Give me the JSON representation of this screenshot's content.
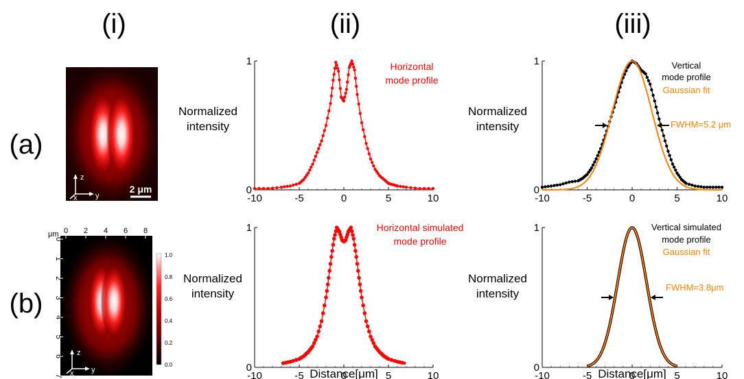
{
  "headers": {
    "col1": "(i)",
    "col2": "(ii)",
    "col3": "(iii)"
  },
  "rows": {
    "row_a": "(a)",
    "row_b": "(b)"
  },
  "image_a": {
    "axis_z": "z",
    "axis_y": "y",
    "axis_x": "x",
    "scale_label": "2 μm"
  },
  "image_b": {
    "unit": "μm",
    "top_ticks": [
      "0",
      "2",
      "4",
      "6",
      "8"
    ],
    "left_ticks": [
      "0",
      "1",
      "2",
      "3",
      "4",
      "5",
      "6",
      "7"
    ],
    "colorbar_ticks": [
      "1.0",
      "0.8",
      "0.6",
      "0.4",
      "0.2",
      "0.0"
    ],
    "axis_z": "z",
    "axis_y": "y",
    "axis_x": "x"
  },
  "chart_data": [
    {
      "id": "a-ii",
      "type": "line",
      "ylabel_line1": "Normalized",
      "ylabel_line2": "intensity",
      "xlim": [
        -10,
        10
      ],
      "ylim": [
        0,
        1
      ],
      "xticks": [
        -10,
        -5,
        0,
        5,
        10
      ],
      "ytick_labels": [
        "0",
        "1"
      ],
      "annotations": [
        "Horizontal",
        "mode profile"
      ],
      "series": [
        {
          "color": "#ff0000",
          "marker": "dot",
          "x": [
            -10,
            -8.5,
            -7,
            -6,
            -5,
            -4.5,
            -4,
            -3.5,
            -3,
            -2.5,
            -2,
            -1.5,
            -1.2,
            -0.9,
            -0.6,
            -0.3,
            0,
            0.3,
            0.6,
            0.9,
            1.2,
            1.5,
            2,
            2.5,
            3,
            3.5,
            4,
            4.5,
            5,
            5.5,
            6,
            7,
            8.5,
            10
          ],
          "y": [
            0.01,
            0.01,
            0.02,
            0.03,
            0.05,
            0.08,
            0.13,
            0.2,
            0.29,
            0.38,
            0.5,
            0.67,
            0.85,
            0.99,
            0.92,
            0.72,
            0.69,
            0.78,
            0.95,
            1.0,
            0.93,
            0.74,
            0.52,
            0.36,
            0.24,
            0.16,
            0.11,
            0.08,
            0.05,
            0.04,
            0.03,
            0.02,
            0.01,
            0.01
          ]
        }
      ]
    },
    {
      "id": "a-iii",
      "type": "line",
      "ylabel_line1": "Normalized",
      "ylabel_line2": "intensity",
      "xlim": [
        -10,
        10
      ],
      "ylim": [
        0,
        1
      ],
      "xticks": [
        -10,
        -5,
        0,
        5,
        10
      ],
      "ytick_labels": [
        "0",
        "1"
      ],
      "annotations": [
        "Vertical",
        "mode profile",
        "Gaussian fit",
        "FWHM=5.2 μm"
      ],
      "series": [
        {
          "color": "#000000",
          "marker": "dot",
          "x": [
            -10,
            -9,
            -8,
            -7,
            -6,
            -5.5,
            -5,
            -4.5,
            -4,
            -3.5,
            -3,
            -2.5,
            -2,
            -1.5,
            -1,
            -0.5,
            0,
            0.5,
            1,
            1.5,
            2,
            2.5,
            3,
            3.5,
            4,
            4.5,
            5,
            5.5,
            6,
            7,
            8,
            9,
            10
          ],
          "y": [
            0.02,
            0.03,
            0.04,
            0.06,
            0.07,
            0.09,
            0.12,
            0.17,
            0.24,
            0.32,
            0.42,
            0.53,
            0.64,
            0.76,
            0.87,
            0.95,
            1.0,
            0.98,
            0.93,
            0.9,
            0.82,
            0.69,
            0.55,
            0.42,
            0.3,
            0.2,
            0.13,
            0.08,
            0.05,
            0.03,
            0.02,
            0.02,
            0.02
          ]
        },
        {
          "color": "#ff8000",
          "marker": "line",
          "gaussian": {
            "center": 0,
            "fwhm": 5.2,
            "amplitude": 1.0
          }
        }
      ]
    },
    {
      "id": "b-ii",
      "type": "line",
      "ylabel_line1": "Normalized",
      "ylabel_line2": "intensity",
      "xlabel": "Distance[μm]",
      "xlim": [
        -10,
        10
      ],
      "ylim": [
        0,
        1
      ],
      "xticks": [
        -10,
        -5,
        0,
        5,
        10
      ],
      "ytick_labels": [
        "0",
        "1"
      ],
      "annotations": [
        "Horizontal simulated",
        "mode profile"
      ],
      "series": [
        {
          "color": "#ff0000",
          "marker": "dot",
          "x": [
            -6.8,
            -6,
            -5,
            -4.5,
            -4,
            -3.5,
            -3,
            -2.5,
            -2,
            -1.7,
            -1.4,
            -1.1,
            -0.8,
            -0.5,
            -0.2,
            0,
            0.2,
            0.5,
            0.8,
            1.1,
            1.4,
            1.7,
            2,
            2.5,
            3,
            3.5,
            4,
            4.5,
            5,
            6,
            6.8
          ],
          "y": [
            0.03,
            0.04,
            0.06,
            0.08,
            0.11,
            0.15,
            0.22,
            0.33,
            0.5,
            0.64,
            0.79,
            0.92,
            1.0,
            0.97,
            0.91,
            0.9,
            0.91,
            0.97,
            1.0,
            0.92,
            0.79,
            0.64,
            0.5,
            0.33,
            0.22,
            0.15,
            0.11,
            0.08,
            0.06,
            0.04,
            0.03
          ]
        }
      ]
    },
    {
      "id": "b-iii",
      "type": "line",
      "ylabel_line1": "Normalized",
      "ylabel_line2": "intensity",
      "xlabel": "Distance[μm]",
      "xlim": [
        -10,
        10
      ],
      "ylim": [
        0,
        1
      ],
      "xticks": [
        -10,
        -5,
        0,
        5,
        10
      ],
      "ytick_labels": [
        "0",
        "1"
      ],
      "annotations": [
        "Vertical simulated",
        "mode profile",
        "Gaussian fit",
        "FWHM=3.8μm"
      ],
      "series": [
        {
          "color": "#000000",
          "marker": "line",
          "range": [
            -5,
            5
          ],
          "gaussian": {
            "center": 0,
            "fwhm": 3.8,
            "amplitude": 1.0
          }
        },
        {
          "color": "#ff8000",
          "marker": "line",
          "range": [
            -5,
            5
          ],
          "gaussian": {
            "center": 0,
            "fwhm": 3.8,
            "amplitude": 1.0
          }
        }
      ]
    }
  ]
}
